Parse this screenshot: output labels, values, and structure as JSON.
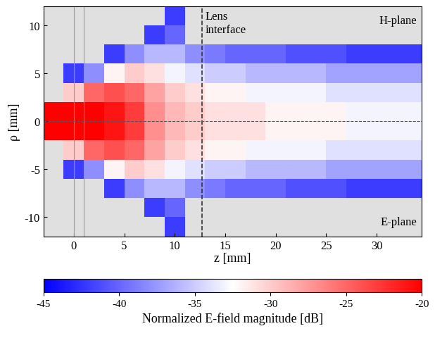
{
  "chart_data": {
    "type": "heatmap",
    "xlabel": "z [mm]",
    "ylabel": "ρ [mm]",
    "colorbar_label": "Normalized E-field magnitude [dB]",
    "xlim": [
      -3,
      34.5
    ],
    "ylim": [
      -12,
      12
    ],
    "xticks": [
      0,
      5,
      10,
      15,
      20,
      25,
      30
    ],
    "yticks": [
      -10,
      -5,
      0,
      5,
      10
    ],
    "colorbar_range": [
      -45,
      -20
    ],
    "colorbar_ticks": [
      -45,
      -40,
      -35,
      -30,
      -25,
      -20
    ],
    "annotations": [
      {
        "text": "Lens\ninterface",
        "x": 12.7,
        "y": 11.5
      },
      {
        "text": "H-plane",
        "x": 34,
        "y": 10.5
      },
      {
        "text": "E-plane",
        "x": 34,
        "y": -10.5
      }
    ],
    "lens_z": 12.7,
    "boundaries": [
      0,
      1
    ],
    "symmetry_axis": 0,
    "z_edges": [
      -3,
      -1,
      1,
      3,
      5,
      7,
      9,
      11,
      13,
      15,
      17,
      19,
      21,
      23,
      25,
      27,
      29,
      31,
      33,
      35
    ],
    "rho_edges": [
      -12,
      -10,
      -8,
      -6,
      -4,
      -2,
      0,
      2,
      4,
      6,
      8,
      10,
      12
    ],
    "cells": [
      [
        null,
        null,
        null,
        null,
        null,
        null,
        -42,
        null,
        null,
        null,
        null,
        null,
        null,
        null,
        null,
        null,
        null,
        null,
        null
      ],
      [
        null,
        null,
        null,
        null,
        null,
        -42,
        -40,
        null,
        null,
        null,
        null,
        null,
        null,
        null,
        null,
        null,
        null,
        null,
        null
      ],
      [
        null,
        null,
        null,
        -42,
        -38,
        -36,
        -36,
        -38,
        -39,
        -40,
        -40,
        -40,
        -41,
        -41,
        -41,
        -42,
        -42,
        -42,
        -42
      ],
      [
        null,
        -42,
        -38,
        -32,
        -30,
        -31,
        -33,
        -34,
        -35,
        -35,
        -36,
        -36,
        -36,
        -36,
        -37,
        -37,
        -37,
        -37,
        -37
      ],
      [
        null,
        -30,
        -25,
        -24,
        -25,
        -28,
        -30,
        -31,
        -32,
        -32,
        -33,
        -33,
        -33,
        -33,
        -34,
        -34,
        -34,
        -34,
        -34
      ],
      [
        -20,
        -20,
        -20,
        -21,
        -23,
        -27,
        -29,
        -30,
        -31,
        -31,
        -31,
        -32,
        -32,
        -32,
        -32,
        -33,
        -33,
        -33,
        -33
      ],
      [
        -20,
        -20,
        -20,
        -21,
        -23,
        -27,
        -29,
        -30,
        -31,
        -31,
        -31,
        -32,
        -32,
        -32,
        -32,
        -33,
        -33,
        -33,
        -33
      ],
      [
        null,
        -30,
        -25,
        -24,
        -25,
        -28,
        -30,
        -31,
        -32,
        -32,
        -33,
        -33,
        -33,
        -33,
        -34,
        -34,
        -34,
        -34,
        -34
      ],
      [
        null,
        -42,
        -38,
        -32,
        -30,
        -31,
        -33,
        -34,
        -35,
        -35,
        -36,
        -36,
        -36,
        -36,
        -37,
        -37,
        -37,
        -37,
        -37
      ],
      [
        null,
        null,
        null,
        -42,
        -38,
        -36,
        -36,
        -38,
        -39,
        -40,
        -40,
        -40,
        -41,
        -41,
        -41,
        -42,
        -42,
        -42,
        -42
      ],
      [
        null,
        null,
        null,
        null,
        null,
        -42,
        -40,
        null,
        null,
        null,
        null,
        null,
        null,
        null,
        null,
        null,
        null,
        null,
        null
      ],
      [
        null,
        null,
        null,
        null,
        null,
        null,
        -42,
        null,
        null,
        null,
        null,
        null,
        null,
        null,
        null,
        null,
        null,
        null,
        null
      ]
    ]
  }
}
